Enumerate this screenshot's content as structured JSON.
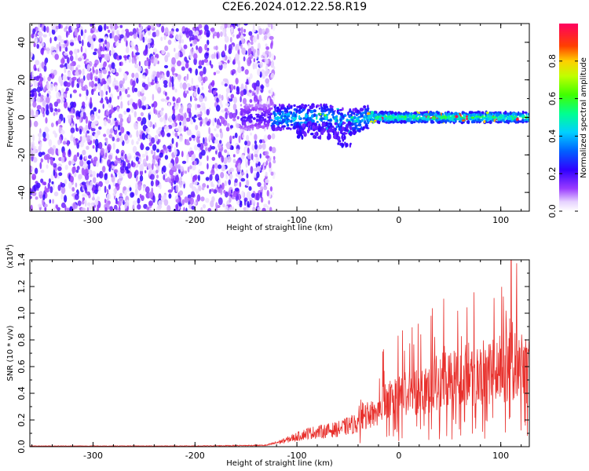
{
  "title": "C2E6.2024.012.22.58.R19",
  "chart_data": [
    {
      "type": "heatmap",
      "xlabel": "Height of straight line (km)",
      "ylabel": "Frequency (Hz)",
      "xlim": [
        -362,
        128
      ],
      "ylim": [
        -50,
        50
      ],
      "xticks": [
        -300,
        -200,
        -100,
        0,
        100
      ],
      "yticks": [
        -40,
        -20,
        0,
        20,
        40
      ],
      "noise_region_end_km": -128,
      "signal_band_center_hz": 0,
      "signal_band_halfwidth_hz": 3,
      "colorbar": {
        "label": "Normalized spectral amplitude",
        "range": [
          0.0,
          1.0
        ],
        "ticks": [
          "0.0",
          "0.2",
          "0.4",
          "0.6",
          "0.8"
        ],
        "tick_values": [
          0.0,
          0.2,
          0.4,
          0.6,
          0.8
        ],
        "colors": [
          "#ffffff",
          "#e6d2ff",
          "#7f00ff",
          "#0000ff",
          "#00bfff",
          "#00ff80",
          "#40ff00",
          "#c0ff00",
          "#ffff00",
          "#ff8000",
          "#ff0000",
          "#ff0080"
        ]
      }
    },
    {
      "type": "line",
      "xlabel": "Height of straight line (km)",
      "ylabel": "SNR (10 * v/v)",
      "yscale_label": "(x10",
      "yscale_exp": "4",
      "yscale_close": ")",
      "xlim": [
        -362,
        128
      ],
      "ylim": [
        0.0,
        1.4
      ],
      "xticks": [
        -300,
        -200,
        -100,
        0,
        100
      ],
      "yticks": [
        "0.0",
        "0.2",
        "0.4",
        "0.6",
        "0.8",
        "1.0",
        "1.2",
        "1.4"
      ],
      "ytick_values": [
        0.0,
        0.2,
        0.4,
        0.6,
        0.8,
        1.0,
        1.2,
        1.4
      ],
      "color": "#e8302c",
      "envelope": {
        "x": [
          -362,
          -200,
          -130,
          -110,
          -90,
          -60,
          -40,
          -25,
          -15,
          0,
          20,
          40,
          60,
          80,
          100,
          115,
          128
        ],
        "y": [
          0.005,
          0.005,
          0.01,
          0.05,
          0.1,
          0.13,
          0.18,
          0.25,
          0.32,
          0.38,
          0.43,
          0.48,
          0.52,
          0.55,
          0.58,
          0.6,
          0.55
        ]
      }
    }
  ]
}
